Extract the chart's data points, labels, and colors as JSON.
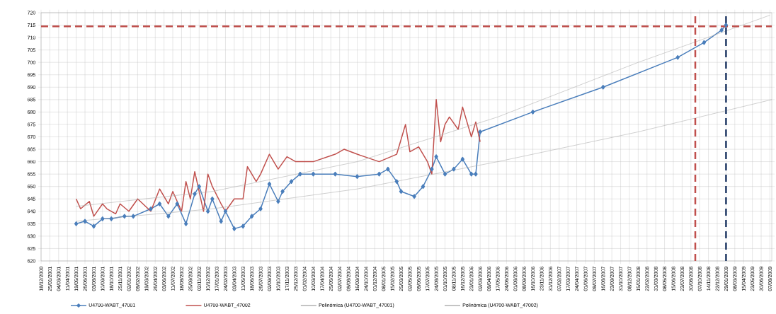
{
  "chart_data": {
    "type": "line",
    "xlim": [
      "2000-12-18",
      "2009-08-15"
    ],
    "ylim": [
      620,
      720
    ],
    "yticks": [
      620,
      625,
      630,
      635,
      640,
      645,
      650,
      655,
      660,
      665,
      670,
      675,
      680,
      685,
      690,
      695,
      700,
      705,
      710,
      715,
      720
    ],
    "xticks": [
      {
        "value": "2000-12-18",
        "label": "18/12/2000"
      },
      {
        "value": "2001-01-25",
        "label": "25/01/2001"
      },
      {
        "value": "2001-03-04",
        "label": "04/03/2001"
      },
      {
        "value": "2001-04-11",
        "label": "11/04/2001"
      },
      {
        "value": "2001-05-19",
        "label": "19/05/2001"
      },
      {
        "value": "2001-06-26",
        "label": "26/06/2001"
      },
      {
        "value": "2001-08-03",
        "label": "03/08/2001"
      },
      {
        "value": "2001-09-10",
        "label": "10/09/2001"
      },
      {
        "value": "2001-10-18",
        "label": "18/10/2001"
      },
      {
        "value": "2001-11-25",
        "label": "25/11/2001"
      },
      {
        "value": "2002-01-02",
        "label": "02/01/2002"
      },
      {
        "value": "2002-02-09",
        "label": "09/02/2002"
      },
      {
        "value": "2002-03-19",
        "label": "19/03/2002"
      },
      {
        "value": "2002-04-26",
        "label": "26/04/2002"
      },
      {
        "value": "2002-06-03",
        "label": "03/06/2002"
      },
      {
        "value": "2002-07-11",
        "label": "11/07/2002"
      },
      {
        "value": "2002-08-18",
        "label": "18/08/2002"
      },
      {
        "value": "2002-09-25",
        "label": "25/09/2002"
      },
      {
        "value": "2002-11-02",
        "label": "02/11/2002"
      },
      {
        "value": "2002-12-10",
        "label": "10/12/2002"
      },
      {
        "value": "2003-01-17",
        "label": "17/01/2003"
      },
      {
        "value": "2003-02-24",
        "label": "24/02/2003"
      },
      {
        "value": "2003-04-03",
        "label": "03/04/2003"
      },
      {
        "value": "2003-05-11",
        "label": "11/05/2003"
      },
      {
        "value": "2003-06-18",
        "label": "18/06/2003"
      },
      {
        "value": "2003-07-26",
        "label": "26/07/2003"
      },
      {
        "value": "2003-09-02",
        "label": "02/09/2003"
      },
      {
        "value": "2003-10-10",
        "label": "10/10/2003"
      },
      {
        "value": "2003-11-17",
        "label": "17/11/2003"
      },
      {
        "value": "2003-12-25",
        "label": "25/12/2003"
      },
      {
        "value": "2004-02-01",
        "label": "01/02/2004"
      },
      {
        "value": "2004-03-10",
        "label": "10/03/2004"
      },
      {
        "value": "2004-04-17",
        "label": "17/04/2004"
      },
      {
        "value": "2004-05-25",
        "label": "25/05/2004"
      },
      {
        "value": "2004-07-02",
        "label": "02/07/2004"
      },
      {
        "value": "2004-08-09",
        "label": "09/08/2004"
      },
      {
        "value": "2004-09-16",
        "label": "16/09/2004"
      },
      {
        "value": "2004-10-24",
        "label": "24/10/2004"
      },
      {
        "value": "2004-12-01",
        "label": "01/12/2004"
      },
      {
        "value": "2005-01-08",
        "label": "08/01/2005"
      },
      {
        "value": "2005-02-15",
        "label": "15/02/2005"
      },
      {
        "value": "2005-03-25",
        "label": "25/03/2005"
      },
      {
        "value": "2005-05-02",
        "label": "02/05/2005"
      },
      {
        "value": "2005-06-09",
        "label": "09/06/2005"
      },
      {
        "value": "2005-07-17",
        "label": "17/07/2005"
      },
      {
        "value": "2005-08-24",
        "label": "24/08/2005"
      },
      {
        "value": "2005-10-01",
        "label": "01/10/2005"
      },
      {
        "value": "2005-11-08",
        "label": "08/11/2005"
      },
      {
        "value": "2005-12-16",
        "label": "16/12/2005"
      },
      {
        "value": "2006-01-23",
        "label": "23/01/2006"
      },
      {
        "value": "2006-03-02",
        "label": "02/03/2006"
      },
      {
        "value": "2006-04-09",
        "label": "09/04/2006"
      },
      {
        "value": "2006-05-17",
        "label": "17/05/2006"
      },
      {
        "value": "2006-06-24",
        "label": "24/06/2006"
      },
      {
        "value": "2006-08-01",
        "label": "01/08/2006"
      },
      {
        "value": "2006-09-08",
        "label": "08/09/2006"
      },
      {
        "value": "2006-10-16",
        "label": "16/10/2006"
      },
      {
        "value": "2006-11-23",
        "label": "23/11/2006"
      },
      {
        "value": "2006-12-31",
        "label": "31/12/2006"
      },
      {
        "value": "2007-02-07",
        "label": "07/02/2007"
      },
      {
        "value": "2007-03-17",
        "label": "17/03/2007"
      },
      {
        "value": "2007-04-24",
        "label": "24/04/2007"
      },
      {
        "value": "2007-06-01",
        "label": "01/06/2007"
      },
      {
        "value": "2007-07-09",
        "label": "09/07/2007"
      },
      {
        "value": "2007-08-16",
        "label": "16/08/2007"
      },
      {
        "value": "2007-09-23",
        "label": "23/09/2007"
      },
      {
        "value": "2007-10-31",
        "label": "31/10/2007"
      },
      {
        "value": "2007-12-08",
        "label": "08/12/2007"
      },
      {
        "value": "2008-01-15",
        "label": "15/01/2008"
      },
      {
        "value": "2008-02-22",
        "label": "22/02/2008"
      },
      {
        "value": "2008-03-31",
        "label": "31/03/2008"
      },
      {
        "value": "2008-05-08",
        "label": "08/05/2008"
      },
      {
        "value": "2008-06-15",
        "label": "15/06/2008"
      },
      {
        "value": "2008-07-23",
        "label": "23/07/2008"
      },
      {
        "value": "2008-08-30",
        "label": "30/08/2008"
      },
      {
        "value": "2008-10-07",
        "label": "07/10/2008"
      },
      {
        "value": "2008-11-14",
        "label": "14/11/2008"
      },
      {
        "value": "2008-12-22",
        "label": "22/12/2008"
      },
      {
        "value": "2009-01-29",
        "label": "29/01/2009"
      },
      {
        "value": "2009-03-08",
        "label": "08/03/2009"
      },
      {
        "value": "2009-04-15",
        "label": "15/04/2009"
      },
      {
        "value": "2009-05-23",
        "label": "23/05/2009"
      },
      {
        "value": "2009-06-30",
        "label": "30/06/2009"
      },
      {
        "value": "2009-08-07",
        "label": "07/08/2009"
      }
    ],
    "grid": true,
    "legend": "bottom",
    "series": [
      {
        "name": "U4700-WABT_47001",
        "color": "#4a7ebb",
        "marker": "diamond",
        "x": [
          "2001-05-19",
          "2001-06-26",
          "2001-08-03",
          "2001-09-10",
          "2001-10-18",
          "2001-12-14",
          "2002-01-21",
          "2002-04-07",
          "2002-05-15",
          "2002-06-22",
          "2002-07-30",
          "2002-09-06",
          "2002-10-14",
          "2002-11-02",
          "2002-12-10",
          "2002-12-29",
          "2003-02-05",
          "2003-02-24",
          "2003-04-03",
          "2003-05-11",
          "2003-06-18",
          "2003-07-26",
          "2003-09-02",
          "2003-10-10",
          "2003-10-29",
          "2003-12-06",
          "2004-01-13",
          "2004-03-10",
          "2004-06-13",
          "2004-09-16",
          "2004-12-20",
          "2005-01-27",
          "2005-03-06",
          "2005-03-25",
          "2005-05-21",
          "2005-06-28",
          "2005-08-05",
          "2005-08-24",
          "2005-10-01",
          "2005-11-08",
          "2005-12-16",
          "2006-01-23",
          "2006-02-11",
          "2006-03-02",
          "2006-10-16",
          "2007-08-16",
          "2008-07-04",
          "2008-10-26",
          "2009-01-10",
          "2009-01-29"
        ],
        "values": [
          635,
          636,
          634,
          637,
          637,
          638,
          638,
          641,
          643,
          638,
          643,
          635,
          647,
          650,
          640,
          645,
          636,
          640,
          633,
          634,
          638,
          641,
          651,
          644,
          648,
          652,
          655,
          655,
          655,
          654,
          655,
          657,
          652,
          648,
          646,
          650,
          657,
          662,
          655,
          657,
          661,
          655,
          655,
          672,
          680,
          690,
          702,
          708,
          713,
          715
        ]
      },
      {
        "name": "U4700-WABT_47002",
        "color": "#c0504d",
        "x": [
          "2001-05-19",
          "2001-06-07",
          "2001-07-15",
          "2001-08-03",
          "2001-09-10",
          "2001-09-29",
          "2001-11-06",
          "2001-11-25",
          "2002-01-02",
          "2002-02-09",
          "2002-04-07",
          "2002-05-15",
          "2002-06-22",
          "2002-07-11",
          "2002-08-18",
          "2002-09-06",
          "2002-09-25",
          "2002-10-14",
          "2002-11-21",
          "2002-12-10",
          "2002-12-29",
          "2003-02-05",
          "2003-02-24",
          "2003-04-03",
          "2003-05-11",
          "2003-05-30",
          "2003-07-07",
          "2003-07-26",
          "2003-09-02",
          "2003-10-10",
          "2003-11-17",
          "2003-12-25",
          "2004-03-10",
          "2004-06-13",
          "2004-07-21",
          "2004-09-16",
          "2004-12-20",
          "2005-03-06",
          "2005-04-13",
          "2005-05-02",
          "2005-06-09",
          "2005-07-17",
          "2005-08-05",
          "2005-08-24",
          "2005-09-12",
          "2005-10-01",
          "2005-10-20",
          "2005-11-27",
          "2005-12-16",
          "2006-01-23",
          "2006-02-11",
          "2006-03-02"
        ],
        "values": [
          645,
          641,
          644,
          638,
          643,
          641,
          639,
          643,
          640,
          645,
          640,
          649,
          643,
          648,
          640,
          652,
          645,
          656,
          640,
          655,
          650,
          643,
          640,
          645,
          645,
          658,
          652,
          655,
          663,
          657,
          662,
          660,
          660,
          663,
          665,
          663,
          660,
          663,
          675,
          664,
          666,
          660,
          655,
          685,
          668,
          675,
          678,
          673,
          682,
          670,
          676,
          668
        ]
      },
      {
        "name": "Polinómica (U4700-WABT_47001)",
        "color": "#b0b0b0",
        "x": [
          "2001-05-19",
          "2002-12-29",
          "2004-09-16",
          "2006-05-17",
          "2008-01-15",
          "2009-08-15"
        ],
        "values": [
          636,
          641,
          649,
          660,
          672,
          685
        ]
      },
      {
        "name": "Polinómica (U4700-WABT_47002)",
        "color": "#b0b0b0",
        "x": [
          "2001-05-19",
          "2002-12-29",
          "2004-09-16",
          "2006-05-17",
          "2008-01-15",
          "2009-08-07"
        ],
        "values": [
          642,
          648,
          660,
          678,
          700,
          719
        ]
      }
    ],
    "ref_lines": [
      {
        "axis": "y",
        "value": 714.5,
        "color": "#c0504d",
        "line_style": "dashed"
      },
      {
        "axis": "x",
        "value": "2008-09-18",
        "color": "#c0504d",
        "line_style": "dashed"
      },
      {
        "axis": "x",
        "value": "2009-01-29",
        "color": "#1f3864",
        "line_style": "dashed"
      }
    ]
  }
}
